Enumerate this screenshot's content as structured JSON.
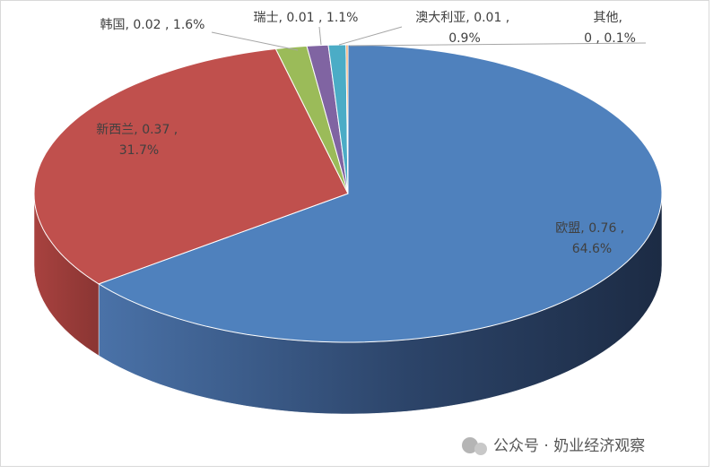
{
  "chart_data": {
    "type": "pie3d",
    "categories": [
      "欧盟",
      "新西兰",
      "韩国",
      "瑞士",
      "澳大利亚",
      "其他"
    ],
    "values": [
      0.76,
      0.37,
      0.02,
      0.01,
      0.01,
      0.0
    ],
    "percents": [
      64.6,
      31.7,
      1.6,
      1.1,
      0.9,
      0.1
    ],
    "percent_labels": [
      "64.6%",
      "31.7%",
      "1.6%",
      "1.1%",
      "0.9%",
      "0.1%"
    ],
    "label_separators": [
      ", ",
      " , "
    ],
    "colors": [
      "#4f81bd",
      "#c0504d",
      "#9bbb59",
      "#8064a2",
      "#4bacc6",
      "#f79646"
    ],
    "watermark": "公众号 · 奶业经济观察"
  }
}
